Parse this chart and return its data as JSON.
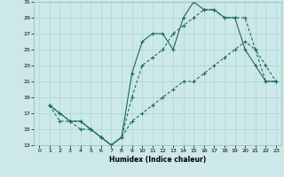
{
  "title": "",
  "xlabel": "Humidex (Indice chaleur)",
  "xlim": [
    -0.5,
    23.5
  ],
  "ylim": [
    13,
    31
  ],
  "xticks": [
    0,
    1,
    2,
    3,
    4,
    5,
    6,
    7,
    8,
    9,
    10,
    11,
    12,
    13,
    14,
    15,
    16,
    17,
    18,
    19,
    20,
    21,
    22,
    23
  ],
  "yticks": [
    13,
    15,
    17,
    19,
    21,
    23,
    25,
    27,
    29,
    31
  ],
  "bg_color": "#cce8e8",
  "line_color": "#1a6b5a",
  "line1_x": [
    1,
    2,
    3,
    4,
    5,
    6,
    7,
    8,
    9,
    10,
    11,
    12,
    13,
    14,
    15,
    16,
    17,
    18,
    19,
    20,
    21,
    22,
    23
  ],
  "line1_y": [
    18,
    17,
    16,
    16,
    15,
    14,
    13,
    14,
    22,
    26,
    27,
    27,
    25,
    29,
    31,
    30,
    30,
    29,
    29,
    25,
    23,
    21,
    21
  ],
  "line2_x": [
    1,
    2,
    3,
    4,
    5,
    6,
    7,
    8,
    9,
    10,
    11,
    12,
    13,
    14,
    15,
    16,
    17,
    18,
    19,
    20,
    21,
    22,
    23
  ],
  "line2_y": [
    18,
    16,
    16,
    15,
    15,
    14,
    13,
    14,
    19,
    23,
    24,
    25,
    27,
    28,
    29,
    30,
    30,
    29,
    29,
    29,
    25,
    23,
    21
  ],
  "line3_x": [
    1,
    2,
    3,
    4,
    5,
    6,
    7,
    8,
    9,
    10,
    11,
    12,
    13,
    14,
    15,
    16,
    17,
    18,
    19,
    20,
    21,
    22,
    23
  ],
  "line3_y": [
    18,
    17,
    16,
    16,
    15,
    14,
    13,
    14,
    16,
    17,
    18,
    19,
    20,
    21,
    21,
    22,
    23,
    24,
    25,
    26,
    25,
    21,
    21
  ]
}
